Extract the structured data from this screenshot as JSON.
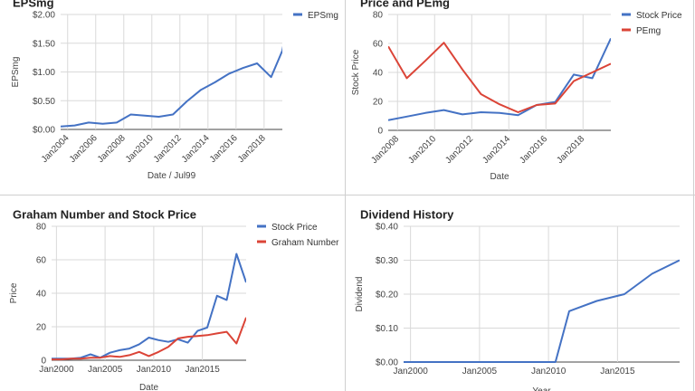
{
  "chart_data": [
    {
      "type": "line",
      "title": "EPSmg",
      "xlabel": "Date / Jul99",
      "ylabel": "EPSmg",
      "xlim": [
        2003.5,
        2019.3
      ],
      "ylim": [
        0,
        2
      ],
      "yticks": [
        "$0.00",
        "$0.50",
        "$1.00",
        "$1.50",
        "$2.00"
      ],
      "xticks": [
        {
          "label": "Jan2004",
          "x": 2004
        },
        {
          "label": "Jan2006",
          "x": 2006
        },
        {
          "label": "Jan2008",
          "x": 2008
        },
        {
          "label": "Jan2010",
          "x": 2010
        },
        {
          "label": "Jan2012",
          "x": 2012
        },
        {
          "label": "Jan2014",
          "x": 2014
        },
        {
          "label": "Jan2016",
          "x": 2016
        },
        {
          "label": "Jan2018",
          "x": 2018
        }
      ],
      "legend_position": "top-right",
      "grid": true,
      "series": [
        {
          "name": "EPSmg",
          "color": "#4472c4",
          "x": [
            2003.5,
            2004.5,
            2005.5,
            2006.5,
            2007.5,
            2008.5,
            2009.5,
            2010.5,
            2011.5,
            2012.5,
            2013.5,
            2014.5,
            2015.5,
            2016.5,
            2017.5,
            2018.5,
            2019.3
          ],
          "y": [
            0.05,
            0.07,
            0.12,
            0.1,
            0.12,
            0.26,
            0.24,
            0.22,
            0.26,
            0.49,
            0.69,
            0.82,
            0.97,
            1.07,
            1.15,
            0.91,
            1.37
          ]
        },
        {
          "name": "",
          "color": "#4472c4",
          "x": [
            2019.3,
            2019.5
          ],
          "y": [
            1.37,
            1.62
          ]
        }
      ]
    },
    {
      "type": "line",
      "title": "Price and PEmg",
      "xlabel": "Date",
      "ylabel": "Stock Price",
      "xlim": [
        2007.5,
        2019.5
      ],
      "ylim": [
        0,
        80
      ],
      "yticks": [
        "0",
        "20",
        "40",
        "60",
        "80"
      ],
      "xticks": [
        {
          "label": "Jan2008",
          "x": 2008
        },
        {
          "label": "Jan2010",
          "x": 2010
        },
        {
          "label": "Jan2012",
          "x": 2012
        },
        {
          "label": "Jan2014",
          "x": 2014
        },
        {
          "label": "Jan2016",
          "x": 2016
        },
        {
          "label": "Jan2018",
          "x": 2018
        }
      ],
      "legend_position": "top-right",
      "grid": true,
      "series": [
        {
          "name": "Stock Price",
          "color": "#4472c4",
          "x": [
            2007.5,
            2008.5,
            2009.5,
            2010.5,
            2011.5,
            2012.5,
            2013.5,
            2014.5,
            2015.5,
            2016.5,
            2017.5,
            2018.5,
            2019.5
          ],
          "y": [
            7,
            9.5,
            12,
            14,
            11,
            12.5,
            12,
            10.5,
            17.5,
            19.5,
            38.5,
            36,
            63.5
          ]
        },
        {
          "name": "PEmg",
          "color": "#db4437",
          "x": [
            2007.5,
            2008.5,
            2009.5,
            2010.5,
            2011.5,
            2012.5,
            2013.5,
            2014.5,
            2015.5,
            2016.5,
            2017.5,
            2018.5,
            2019.5
          ],
          "y": [
            58,
            36,
            48,
            60.5,
            42,
            25,
            18,
            12.5,
            17.5,
            18.5,
            34,
            40,
            46
          ]
        }
      ]
    },
    {
      "type": "line",
      "title": "Graham Number and Stock Price",
      "xlabel": "Date",
      "ylabel": "Price",
      "xlim": [
        1999.5,
        2019.5
      ],
      "ylim": [
        0,
        80
      ],
      "yticks": [
        "0",
        "20",
        "40",
        "60",
        "80"
      ],
      "xticks": [
        {
          "label": "Jan2000",
          "x": 2000
        },
        {
          "label": "Jan2005",
          "x": 2005
        },
        {
          "label": "Jan2010",
          "x": 2010
        },
        {
          "label": "Jan2015",
          "x": 2015
        }
      ],
      "legend_position": "top-right",
      "grid": true,
      "series": [
        {
          "name": "Stock Price",
          "color": "#4472c4",
          "x": [
            1999.5,
            2000.5,
            2001.5,
            2002.5,
            2003.5,
            2004.5,
            2005.5,
            2006.5,
            2007.5,
            2008.5,
            2009.5,
            2010.5,
            2011.5,
            2012.5,
            2013.5,
            2014.5,
            2015.5,
            2016.5,
            2017.5,
            2018.5,
            2019.5
          ],
          "y": [
            1,
            1,
            1,
            1.5,
            3.5,
            1.5,
            4.5,
            6,
            7,
            9.5,
            13.5,
            12,
            11,
            12.5,
            10.5,
            17.5,
            19.5,
            38.5,
            36,
            63.5,
            46.5
          ]
        },
        {
          "name": "Graham Number",
          "color": "#db4437",
          "x": [
            1999.5,
            2000.5,
            2001.5,
            2002.5,
            2003.5,
            2004.5,
            2005.5,
            2006.5,
            2007.5,
            2008.5,
            2009.5,
            2010.5,
            2011.5,
            2012.5,
            2013.5,
            2014.5,
            2015.5,
            2016.5,
            2017.5,
            2018.5,
            2019.5
          ],
          "y": [
            0.5,
            0.5,
            1,
            1,
            1.5,
            1.5,
            2.5,
            2,
            3,
            5,
            2.5,
            5,
            8,
            13,
            14,
            14.5,
            15,
            16,
            17,
            10,
            25.5
          ]
        }
      ]
    },
    {
      "type": "line",
      "title": "Dividend History",
      "xlabel": "Year",
      "ylabel": "Dividend",
      "xlim": [
        1999.5,
        2019.5
      ],
      "ylim": [
        0,
        0.4
      ],
      "yticks": [
        "$0.00",
        "$0.10",
        "$0.20",
        "$0.30",
        "$0.40"
      ],
      "xticks": [
        {
          "label": "Jan2000",
          "x": 2000
        },
        {
          "label": "Jan2005",
          "x": 2005
        },
        {
          "label": "Jan2010",
          "x": 2010
        },
        {
          "label": "Jan2015",
          "x": 2015
        }
      ],
      "legend_position": "none",
      "grid": true,
      "series": [
        {
          "name": "",
          "color": "#4472c4",
          "x": [
            1999.5,
            2010.5,
            2011.5,
            2013.5,
            2015.5,
            2017.5,
            2019.5
          ],
          "y": [
            0,
            0,
            0.15,
            0.18,
            0.2,
            0.26,
            0.3
          ]
        }
      ]
    }
  ]
}
